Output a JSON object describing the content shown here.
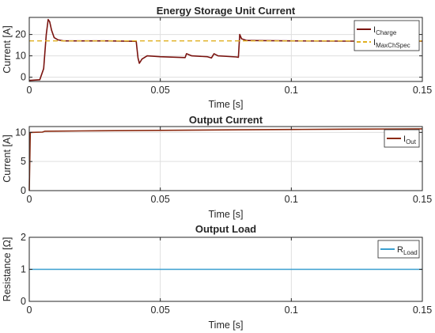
{
  "chart_data": [
    {
      "type": "line",
      "title": "Energy Storage Unit Current",
      "xlabel": "Time [s]",
      "ylabel": "Current [A]",
      "xlim": [
        0,
        0.15
      ],
      "ylim": [
        -2,
        28
      ],
      "xticks": [
        0,
        0.05,
        0.1,
        0.15
      ],
      "xtick_labels": [
        "0",
        "0.05",
        "0.1",
        "0.15"
      ],
      "yticks": [
        0,
        10,
        20
      ],
      "ytick_labels": [
        "0",
        "10",
        "20"
      ],
      "grid": true,
      "legend_position": "top-right",
      "series": [
        {
          "name": "I",
          "name_sub": "Charge",
          "color": "#d11a1a",
          "line_color": "#7a1410",
          "points": [
            [
              0,
              -1.5
            ],
            [
              0.004,
              -1.2
            ],
            [
              0.0055,
              4
            ],
            [
              0.0065,
              20
            ],
            [
              0.0072,
              27
            ],
            [
              0.0078,
              26
            ],
            [
              0.0085,
              22
            ],
            [
              0.0095,
              18.5
            ],
            [
              0.011,
              17.5
            ],
            [
              0.013,
              17
            ],
            [
              0.02,
              17
            ],
            [
              0.03,
              17
            ],
            [
              0.04,
              16.8
            ],
            [
              0.0408,
              16.8
            ],
            [
              0.0415,
              9
            ],
            [
              0.042,
              6.5
            ],
            [
              0.043,
              8.5
            ],
            [
              0.045,
              10
            ],
            [
              0.05,
              9.6
            ],
            [
              0.0595,
              9.2
            ],
            [
              0.06,
              11
            ],
            [
              0.062,
              10
            ],
            [
              0.068,
              9.6
            ],
            [
              0.0695,
              9
            ],
            [
              0.0705,
              11
            ],
            [
              0.072,
              10
            ],
            [
              0.079,
              9.5
            ],
            [
              0.0798,
              9.3
            ],
            [
              0.0803,
              20
            ],
            [
              0.081,
              18
            ],
            [
              0.083,
              17.2
            ],
            [
              0.1,
              17
            ],
            [
              0.12,
              16.9
            ],
            [
              0.15,
              16.9
            ]
          ]
        },
        {
          "name": "I",
          "name_sub": "MaxChSpec",
          "color": "#e0b020",
          "dashed": true,
          "points": [
            [
              0,
              17
            ],
            [
              0.15,
              17
            ]
          ]
        }
      ]
    },
    {
      "type": "line",
      "title": "Output Current",
      "xlabel": "Time [s]",
      "ylabel": "Current [A]",
      "xlim": [
        0,
        0.15
      ],
      "ylim": [
        0,
        11
      ],
      "xticks": [
        0,
        0.05,
        0.1,
        0.15
      ],
      "xtick_labels": [
        "0",
        "0.05",
        "0.1",
        "0.15"
      ],
      "yticks": [
        0,
        5,
        10
      ],
      "ytick_labels": [
        "0",
        "5",
        "10"
      ],
      "grid": true,
      "legend_position": "top-right",
      "series": [
        {
          "name": "I",
          "name_sub": "Out",
          "color": "#8b2a10",
          "points": [
            [
              0,
              0
            ],
            [
              0.0004,
              10
            ],
            [
              0.005,
              10.05
            ],
            [
              0.006,
              10.2
            ],
            [
              0.02,
              10.25
            ],
            [
              0.05,
              10.35
            ],
            [
              0.08,
              10.45
            ],
            [
              0.1,
              10.5
            ],
            [
              0.12,
              10.55
            ],
            [
              0.15,
              10.6
            ]
          ]
        }
      ]
    },
    {
      "type": "line",
      "title": "Output Load",
      "xlabel": "Time [s]",
      "ylabel": "Resistance [Ω]",
      "xlim": [
        0,
        0.15
      ],
      "ylim": [
        0,
        2
      ],
      "xticks": [
        0,
        0.05,
        0.1,
        0.15
      ],
      "xtick_labels": [
        "0",
        "0.05",
        "0.1",
        "0.15"
      ],
      "yticks": [
        0,
        1,
        2
      ],
      "ytick_labels": [
        "0",
        "1",
        "2"
      ],
      "grid": true,
      "legend_position": "top-right",
      "series": [
        {
          "name": "R",
          "name_sub": "Load",
          "color": "#3a9fd0",
          "points": [
            [
              0,
              1
            ],
            [
              0.15,
              1
            ]
          ]
        }
      ]
    }
  ]
}
